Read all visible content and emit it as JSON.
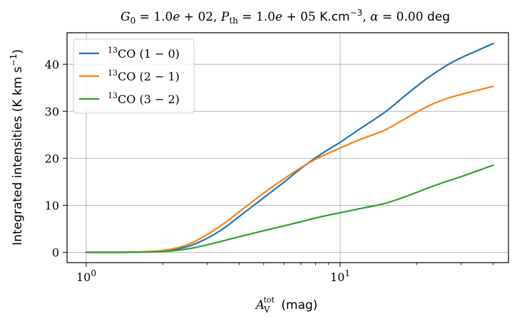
{
  "chart_data": {
    "type": "line",
    "title": "G₀ = 1.0e + 02, P_th = 1.0e + 05 K.cm⁻³, α = 0.00 deg",
    "xlabel": "A_V^tot (mag)",
    "ylabel": "Integrated intensities (K km s⁻¹)",
    "xscale": "log",
    "xlim": [
      0.84,
      46
    ],
    "ylim": [
      -2.2,
      46.7
    ],
    "xticks": [
      {
        "value": 1,
        "label": "10⁰"
      },
      {
        "value": 10,
        "label": "10¹"
      }
    ],
    "yticks": [
      {
        "value": 0,
        "label": "0"
      },
      {
        "value": 10,
        "label": "10"
      },
      {
        "value": 20,
        "label": "20"
      },
      {
        "value": 30,
        "label": "30"
      },
      {
        "value": 40,
        "label": "40"
      }
    ],
    "grid": true,
    "legend_position": "top-left",
    "series": [
      {
        "name": "¹³CO (1 − 0)",
        "color": "#1f77b4",
        "x": [
          1.0,
          1.5,
          2.0,
          2.5,
          3.0,
          3.5,
          4.0,
          5.0,
          6.0,
          7.0,
          8.0,
          9.0,
          10.0,
          12.0,
          15.0,
          18.0,
          22.0,
          26.0,
          30.0,
          35.0,
          40.0
        ],
        "y": [
          0.0,
          0.02,
          0.3,
          1.2,
          3.0,
          5.2,
          7.6,
          11.6,
          14.9,
          17.8,
          20.1,
          21.9,
          23.4,
          26.3,
          29.8,
          33.3,
          37.0,
          39.6,
          41.4,
          43.0,
          44.4
        ]
      },
      {
        "name": "¹³CO (2 − 1)",
        "color": "#ff7f0e",
        "x": [
          1.0,
          1.5,
          2.0,
          2.5,
          3.0,
          3.5,
          4.0,
          5.0,
          6.0,
          7.0,
          8.0,
          9.0,
          10.0,
          12.0,
          15.0,
          18.0,
          22.0,
          26.0,
          30.0,
          35.0,
          40.0
        ],
        "y": [
          0.0,
          0.03,
          0.4,
          1.6,
          3.8,
          6.2,
          8.6,
          12.6,
          15.6,
          18.0,
          19.8,
          21.1,
          22.2,
          24.0,
          26.0,
          28.4,
          31.0,
          32.6,
          33.6,
          34.5,
          35.3
        ]
      },
      {
        "name": "¹³CO (3 − 2)",
        "color": "#2ca02c",
        "x": [
          1.0,
          1.5,
          2.0,
          2.5,
          3.0,
          3.5,
          4.0,
          5.0,
          6.0,
          7.0,
          8.0,
          9.0,
          10.0,
          12.0,
          15.0,
          18.0,
          22.0,
          26.0,
          30.0,
          35.0,
          40.0
        ],
        "y": [
          0.0,
          0.01,
          0.15,
          0.7,
          1.6,
          2.5,
          3.3,
          4.6,
          5.6,
          6.5,
          7.3,
          7.9,
          8.4,
          9.3,
          10.4,
          11.8,
          13.6,
          15.0,
          16.1,
          17.4,
          18.5
        ]
      }
    ]
  }
}
